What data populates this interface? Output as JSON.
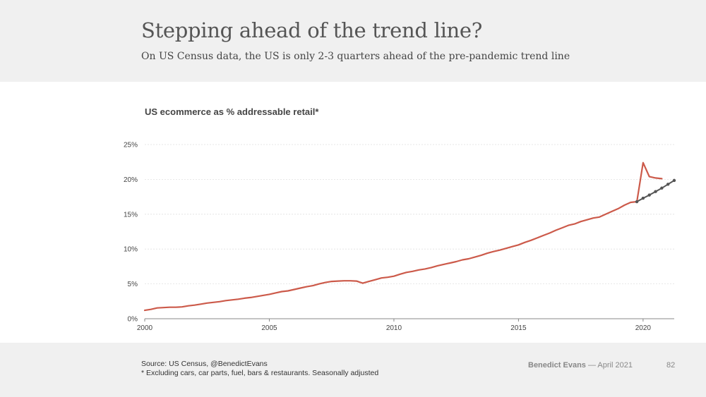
{
  "header": {
    "title": "Stepping ahead of the trend line?",
    "subtitle": "On US Census data, the US is only 2-3 quarters ahead of the pre-pandemic trend line"
  },
  "footer": {
    "source_line1": "Source: US Census, @BenedictEvans",
    "source_line2": "* Excluding cars, car parts, fuel, bars & restaurants. Seasonally adjusted",
    "brand_name": "Benedict Evans",
    "brand_date": " — April 2021",
    "page_number": "82"
  },
  "colors": {
    "actual_line": "#cc5a4a",
    "trend_line": "#555555",
    "grid": "#e0e0e0",
    "header_bg": "#f0f0f0"
  },
  "chart_data": {
    "type": "line",
    "title": "US ecommerce as % addressable retail*",
    "xlabel": "",
    "ylabel": "",
    "xlim": [
      2000,
      2021.25
    ],
    "ylim": [
      0,
      25
    ],
    "grid": "horizontal",
    "x_ticks": [
      "2000",
      "2005",
      "2010",
      "2015",
      "2020"
    ],
    "y_ticks": [
      "0%",
      "5%",
      "10%",
      "15%",
      "20%",
      "25%"
    ],
    "y_tick_values": [
      0,
      5,
      10,
      15,
      20,
      25
    ],
    "x_tick_values": [
      2000,
      2005,
      2010,
      2015,
      2020
    ],
    "series": [
      {
        "name": "",
        "style": "solid",
        "color": "#cc5a4a",
        "x": [
          2000.0,
          2000.25,
          2000.5,
          2000.75,
          2001.0,
          2001.25,
          2001.5,
          2001.75,
          2002.0,
          2002.25,
          2002.5,
          2002.75,
          2003.0,
          2003.25,
          2003.5,
          2003.75,
          2004.0,
          2004.25,
          2004.5,
          2004.75,
          2005.0,
          2005.25,
          2005.5,
          2005.75,
          2006.0,
          2006.25,
          2006.5,
          2006.75,
          2007.0,
          2007.25,
          2007.5,
          2007.75,
          2008.0,
          2008.25,
          2008.5,
          2008.75,
          2009.0,
          2009.25,
          2009.5,
          2009.75,
          2010.0,
          2010.25,
          2010.5,
          2010.75,
          2011.0,
          2011.25,
          2011.5,
          2011.75,
          2012.0,
          2012.25,
          2012.5,
          2012.75,
          2013.0,
          2013.25,
          2013.5,
          2013.75,
          2014.0,
          2014.25,
          2014.5,
          2014.75,
          2015.0,
          2015.25,
          2015.5,
          2015.75,
          2016.0,
          2016.25,
          2016.5,
          2016.75,
          2017.0,
          2017.25,
          2017.5,
          2017.75,
          2018.0,
          2018.25,
          2018.5,
          2018.75,
          2019.0,
          2019.25,
          2019.5,
          2019.75,
          2020.0,
          2020.25,
          2020.5,
          2020.75
        ],
        "y": [
          1.2,
          1.35,
          1.55,
          1.6,
          1.65,
          1.65,
          1.7,
          1.85,
          1.95,
          2.1,
          2.25,
          2.35,
          2.45,
          2.6,
          2.7,
          2.8,
          2.95,
          3.05,
          3.2,
          3.35,
          3.5,
          3.7,
          3.9,
          4.0,
          4.2,
          4.4,
          4.6,
          4.75,
          5.0,
          5.2,
          5.35,
          5.4,
          5.45,
          5.45,
          5.4,
          5.1,
          5.35,
          5.6,
          5.85,
          5.95,
          6.1,
          6.4,
          6.65,
          6.8,
          7.0,
          7.15,
          7.35,
          7.6,
          7.8,
          8.0,
          8.2,
          8.45,
          8.6,
          8.85,
          9.1,
          9.4,
          9.65,
          9.85,
          10.1,
          10.35,
          10.6,
          10.95,
          11.25,
          11.6,
          11.95,
          12.3,
          12.7,
          13.05,
          13.4,
          13.6,
          13.95,
          14.2,
          14.45,
          14.6,
          15.0,
          15.4,
          15.8,
          16.3,
          16.7,
          16.8,
          22.4,
          20.4,
          20.2,
          20.1
        ]
      },
      {
        "name": "",
        "style": "dotted-trend",
        "color": "#555555",
        "x": [
          2019.75,
          2020.0,
          2020.25,
          2020.5,
          2020.75,
          2021.0,
          2021.25
        ],
        "y": [
          16.8,
          17.3,
          17.75,
          18.25,
          18.75,
          19.3,
          19.85
        ]
      }
    ]
  }
}
